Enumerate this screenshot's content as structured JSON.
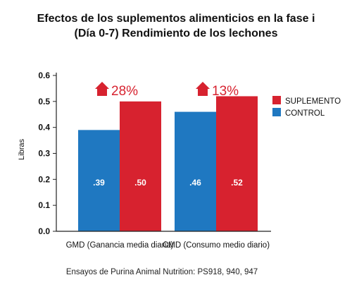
{
  "chart_data": {
    "type": "bar",
    "title_lines": [
      "Efectos de los suplementos alimenticios en la fase i",
      "(Día 0-7) Rendimiento de los lechones"
    ],
    "ylabel": "Libras",
    "xlabel": "",
    "ylim": [
      0,
      0.6
    ],
    "yticks": [
      "0.0",
      "0.1",
      "0.2",
      "0.3",
      "0.4",
      "0.5",
      "0.6"
    ],
    "categories": [
      "GMD (Ganancia media diaria)",
      "CMD (Consumo medio diario)"
    ],
    "series": [
      {
        "name": "CONTROL",
        "color": "#1f78c1",
        "values": [
          0.39,
          0.46
        ],
        "labels": [
          ".39",
          ".46"
        ]
      },
      {
        "name": "SUPLEMENTO",
        "color": "#d7222f",
        "values": [
          0.5,
          0.52
        ],
        "labels": [
          ".50",
          ".52"
        ]
      }
    ],
    "annotations": [
      "28%",
      "13%"
    ],
    "annotation_icon": "up-arrow-house-icon",
    "legend_order": [
      "SUPLEMENTO",
      "CONTROL"
    ],
    "legend_position": "right",
    "grid": false
  },
  "footnote": "Ensayos de Purina Animal Nutrition: PS918, 940, 947"
}
